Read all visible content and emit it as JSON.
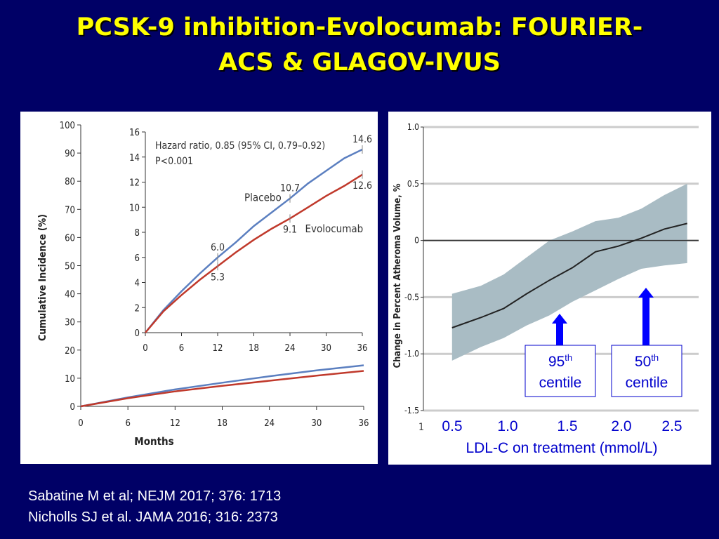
{
  "slide": {
    "title_line1": "PCSK-9 inhibition-Evolocumab: FOURIER-",
    "title_line2": "ACS & GLAGOV-IVUS",
    "references": [
      "Sabatine M et al; NEJM 2017; 376: 1713",
      "Nicholls SJ et al. JAMA 2016; 316: 2373"
    ]
  },
  "chart_data": [
    {
      "type": "line",
      "xlabel": "Months",
      "ylabel": "Cumulative Incidence (%)",
      "xticks": [
        "0",
        "6",
        "12",
        "18",
        "24",
        "30",
        "36"
      ],
      "yticks": [
        "0",
        "10",
        "20",
        "30",
        "40",
        "50",
        "60",
        "70",
        "80",
        "90",
        "100"
      ],
      "xlim": [
        0,
        36
      ],
      "ylim": [
        0,
        100
      ],
      "series": [
        {
          "color": "#5b7fc0",
          "x": [
            0,
            6,
            12,
            18,
            24,
            30,
            36
          ],
          "y": [
            0,
            3.2,
            6.0,
            8.4,
            10.7,
            12.8,
            14.6
          ]
        },
        {
          "color": "#c0392b",
          "x": [
            0,
            6,
            12,
            18,
            24,
            30,
            36
          ],
          "y": [
            0,
            2.9,
            5.3,
            7.3,
            9.1,
            10.9,
            12.6
          ]
        }
      ],
      "inset": {
        "xticks": [
          "0",
          "6",
          "12",
          "18",
          "24",
          "30",
          "36"
        ],
        "yticks": [
          "0",
          "2",
          "4",
          "6",
          "8",
          "10",
          "12",
          "14",
          "16"
        ],
        "xlim": [
          0,
          36
        ],
        "ylim": [
          0,
          16
        ],
        "annotation_line1": "Hazard ratio, 0.85 (95% CI, 0.79–0.92)",
        "annotation_line2": "P<0.001",
        "series": [
          {
            "name": "Placebo",
            "color": "#5b7fc0",
            "x": [
              0,
              3,
              6,
              9,
              12,
              15,
              18,
              21,
              24,
              27,
              30,
              33,
              36
            ],
            "y": [
              0,
              1.8,
              3.3,
              4.7,
              6.0,
              7.2,
              8.5,
              9.6,
              10.7,
              11.9,
              12.9,
              13.9,
              14.6
            ]
          },
          {
            "name": "Evolocumab",
            "color": "#c0392b",
            "x": [
              0,
              3,
              6,
              9,
              12,
              15,
              18,
              21,
              24,
              27,
              30,
              33,
              36
            ],
            "y": [
              0,
              1.7,
              3.0,
              4.2,
              5.3,
              6.4,
              7.4,
              8.3,
              9.1,
              10.0,
              10.9,
              11.7,
              12.6
            ]
          }
        ],
        "data_labels": [
          {
            "text": "6.0",
            "x": 12,
            "y": 6.0,
            "series": "Placebo"
          },
          {
            "text": "5.3",
            "x": 12,
            "y": 5.3,
            "series": "Evolocumab"
          },
          {
            "text": "10.7",
            "x": 24,
            "y": 10.7,
            "series": "Placebo"
          },
          {
            "text": "9.1",
            "x": 24,
            "y": 9.1,
            "series": "Evolocumab"
          },
          {
            "text": "14.6",
            "x": 36,
            "y": 14.6,
            "series": "Placebo"
          },
          {
            "text": "12.6",
            "x": 36,
            "y": 12.6,
            "series": "Evolocumab"
          }
        ]
      }
    },
    {
      "type": "line",
      "ylabel": "Change in Percent Atheroma Volume, %",
      "xlabel": "LDL-C on treatment (mmol/L)",
      "yticks": [
        "1.0",
        "0.5",
        "0",
        "-0.5",
        "-1.0",
        "-1.5"
      ],
      "ylim": [
        -1.5,
        1.0
      ],
      "xlim": [
        0.3,
        2.7
      ],
      "xticks": [
        "0.5",
        "1.0",
        "1.5",
        "2.0",
        "2.5"
      ],
      "x_axis_stub_label": "1",
      "grid": true,
      "zero_line": true,
      "band_color": "#a9bcc4",
      "line_color": "#222222",
      "series": [
        {
          "x": [
            0.55,
            0.8,
            1.0,
            1.2,
            1.4,
            1.6,
            1.8,
            2.0,
            2.2,
            2.4,
            2.6
          ],
          "y": [
            -0.77,
            -0.68,
            -0.6,
            -0.47,
            -0.35,
            -0.24,
            -0.1,
            -0.05,
            0.02,
            0.1,
            0.15
          ]
        }
      ],
      "confidence_band": {
        "x": [
          0.55,
          0.8,
          1.0,
          1.2,
          1.4,
          1.6,
          1.8,
          2.0,
          2.2,
          2.4,
          2.6
        ],
        "upper": [
          -0.47,
          -0.4,
          -0.3,
          -0.15,
          0.0,
          0.08,
          0.17,
          0.2,
          0.28,
          0.4,
          0.5
        ],
        "lower": [
          -1.06,
          -0.94,
          -0.86,
          -0.75,
          -0.66,
          -0.54,
          -0.44,
          -0.34,
          -0.25,
          -0.22,
          -0.2
        ]
      },
      "markers": [
        {
          "label": "95",
          "sup": "th",
          "line2": "centile",
          "x": 1.5,
          "color": "#0000ff"
        },
        {
          "label": "50",
          "sup": "th",
          "line2": "centile",
          "x": 2.2,
          "color": "#0000ff"
        }
      ]
    }
  ]
}
